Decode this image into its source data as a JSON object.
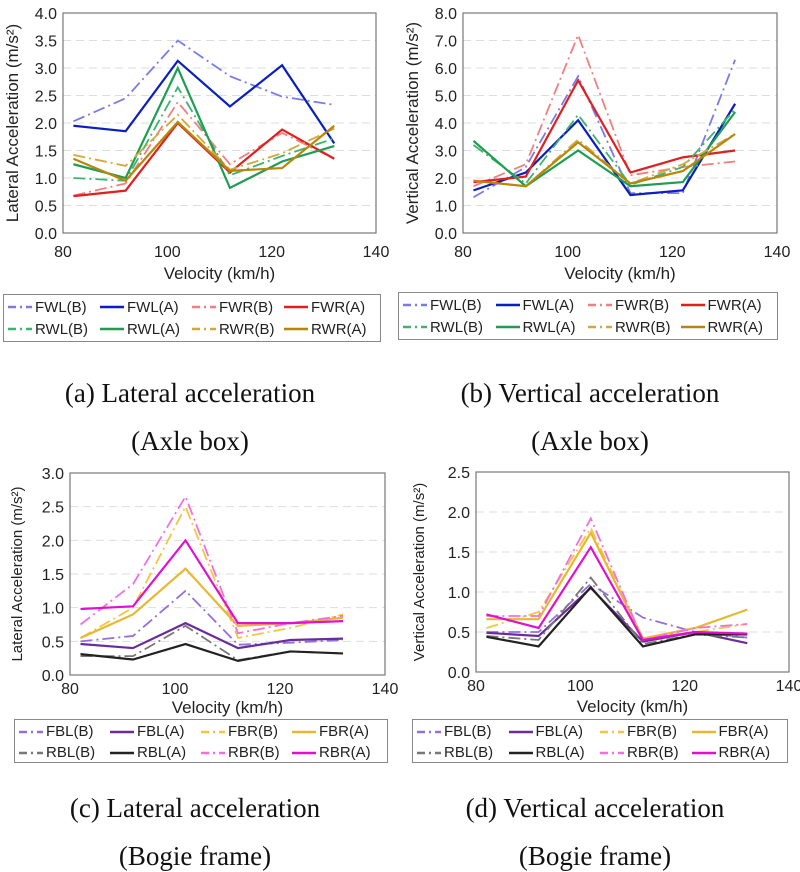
{
  "chart_data": [
    {
      "type": "line",
      "id": "a",
      "xlabel": "Velocity (km/h)",
      "ylabel": "Lateral Acceleration (m/s²)",
      "xlim": [
        80,
        140
      ],
      "ylim": [
        0,
        4
      ],
      "xticks": [
        "80",
        "100",
        "120",
        "140"
      ],
      "yticks": [
        "0.0",
        "0.5",
        "1.0",
        "1.5",
        "2.0",
        "2.5",
        "3.0",
        "3.5",
        "4.0"
      ],
      "grid": "horizontal dashed",
      "legend": "below",
      "caption_line1": "(a) Lateral acceleration",
      "caption_line2": "(Axle box)",
      "x": [
        82,
        92,
        102,
        112,
        122,
        132
      ],
      "series": [
        {
          "name": "FWL(B)",
          "color": "#7b7be6",
          "style": "dashdot",
          "values": [
            2.03,
            2.45,
            3.5,
            2.85,
            2.48,
            2.33
          ]
        },
        {
          "name": "FWL(A)",
          "color": "#0a1fbf",
          "style": "solid",
          "values": [
            1.95,
            1.85,
            3.13,
            2.3,
            3.05,
            1.63
          ]
        },
        {
          "name": "FWR(B)",
          "color": "#f08080",
          "style": "dashdot",
          "values": [
            0.68,
            0.9,
            2.38,
            1.25,
            1.82,
            1.35
          ]
        },
        {
          "name": "FWR(A)",
          "color": "#e01f1f",
          "style": "solid",
          "values": [
            0.67,
            0.77,
            2.0,
            1.1,
            1.88,
            1.35
          ]
        },
        {
          "name": "RWL(B)",
          "color": "#3cb371",
          "style": "dashdot",
          "values": [
            1.0,
            0.95,
            2.65,
            1.05,
            1.4,
            1.72
          ]
        },
        {
          "name": "RWL(A)",
          "color": "#1e9e50",
          "style": "solid",
          "values": [
            1.25,
            1.0,
            3.0,
            0.82,
            1.3,
            1.58
          ]
        },
        {
          "name": "RWR(B)",
          "color": "#d4a73a",
          "style": "dashdot",
          "values": [
            1.42,
            1.22,
            2.15,
            1.15,
            1.45,
            1.9
          ]
        },
        {
          "name": "RWR(A)",
          "color": "#b8860b",
          "style": "solid",
          "values": [
            1.35,
            0.95,
            2.02,
            1.13,
            1.18,
            1.95
          ]
        }
      ]
    },
    {
      "type": "line",
      "id": "b",
      "xlabel": "Velocity (km/h)",
      "ylabel": "Vertical Acceleration (m/s²)",
      "xlim": [
        80,
        140
      ],
      "ylim": [
        0,
        8
      ],
      "xticks": [
        "80",
        "100",
        "120",
        "140"
      ],
      "yticks": [
        "0.0",
        "1.0",
        "2.0",
        "3.0",
        "4.0",
        "5.0",
        "6.0",
        "7.0",
        "8.0"
      ],
      "grid": "horizontal dashed",
      "legend": "below",
      "caption_line1": "(b) Vertical acceleration",
      "caption_line2": "(Axle box)",
      "x": [
        82,
        92,
        102,
        112,
        122,
        132
      ],
      "series": [
        {
          "name": "FWL(B)",
          "color": "#7b7be6",
          "style": "dashdot",
          "values": [
            1.3,
            2.4,
            5.7,
            1.45,
            1.45,
            6.3
          ]
        },
        {
          "name": "FWL(A)",
          "color": "#0a1fbf",
          "style": "solid",
          "values": [
            1.55,
            2.2,
            4.1,
            1.38,
            1.55,
            4.7
          ]
        },
        {
          "name": "FWR(B)",
          "color": "#f08080",
          "style": "dashdot",
          "values": [
            1.7,
            2.5,
            7.2,
            2.1,
            2.4,
            2.6
          ]
        },
        {
          "name": "FWR(A)",
          "color": "#e01f1f",
          "style": "solid",
          "values": [
            1.85,
            2.05,
            5.55,
            2.2,
            2.75,
            3.0
          ]
        },
        {
          "name": "RWL(B)",
          "color": "#3cb371",
          "style": "dashdot",
          "values": [
            3.2,
            1.8,
            4.3,
            1.75,
            2.4,
            4.5
          ]
        },
        {
          "name": "RWL(A)",
          "color": "#1e9e50",
          "style": "solid",
          "values": [
            3.35,
            1.7,
            3.0,
            1.7,
            1.85,
            4.4
          ]
        },
        {
          "name": "RWR(B)",
          "color": "#d4a73a",
          "style": "dashdot",
          "values": [
            1.9,
            1.7,
            3.4,
            1.8,
            2.5,
            3.6
          ]
        },
        {
          "name": "RWR(A)",
          "color": "#b8860b",
          "style": "solid",
          "values": [
            1.9,
            1.7,
            3.3,
            1.8,
            2.25,
            3.6
          ]
        }
      ]
    },
    {
      "type": "line",
      "id": "c",
      "xlabel": "Velocity (km/h)",
      "ylabel": "Lateral Acceleration (m/s²)",
      "xlim": [
        80,
        140
      ],
      "ylim": [
        0,
        3
      ],
      "xticks": [
        "80",
        "100",
        "120",
        "140"
      ],
      "yticks": [
        "0.0",
        "0.5",
        "1.0",
        "1.5",
        "2.0",
        "2.5",
        "3.0"
      ],
      "grid": "horizontal dashed",
      "legend": "below",
      "caption_line1": "(c) Lateral acceleration",
      "caption_line2": "(Bogie frame)",
      "x": [
        82,
        92,
        102,
        112,
        122,
        132
      ],
      "series": [
        {
          "name": "FBL(B)",
          "color": "#9370db",
          "style": "dashdot",
          "values": [
            0.5,
            0.58,
            1.25,
            0.45,
            0.48,
            0.52
          ]
        },
        {
          "name": "FBL(A)",
          "color": "#6a2c9a",
          "style": "solid",
          "values": [
            0.46,
            0.4,
            0.77,
            0.4,
            0.52,
            0.54
          ]
        },
        {
          "name": "FBR(B)",
          "color": "#f5c542",
          "style": "dashdot",
          "values": [
            0.55,
            1.0,
            2.5,
            0.55,
            0.7,
            0.9
          ]
        },
        {
          "name": "FBR(A)",
          "color": "#e8b830",
          "style": "solid",
          "values": [
            0.55,
            0.9,
            1.58,
            0.73,
            0.77,
            0.85
          ]
        },
        {
          "name": "RBL(B)",
          "color": "#777777",
          "style": "dashdot",
          "values": [
            0.28,
            0.28,
            0.73,
            0.22,
            0.35,
            0.32
          ]
        },
        {
          "name": "RBL(A)",
          "color": "#222222",
          "style": "solid",
          "values": [
            0.31,
            0.23,
            0.46,
            0.21,
            0.35,
            0.32
          ]
        },
        {
          "name": "RBR(B)",
          "color": "#f070e0",
          "style": "dashdot",
          "values": [
            0.75,
            1.35,
            2.65,
            0.62,
            0.77,
            0.88
          ]
        },
        {
          "name": "RBR(A)",
          "color": "#e010d0",
          "style": "solid",
          "values": [
            0.98,
            1.02,
            2.0,
            0.77,
            0.77,
            0.8
          ]
        }
      ]
    },
    {
      "type": "line",
      "id": "d",
      "xlabel": "Velocity (km/h)",
      "ylabel": "Vertical Acceleration (m/s²)",
      "xlim": [
        80,
        140
      ],
      "ylim": [
        0,
        2.5
      ],
      "xticks": [
        "80",
        "100",
        "120",
        "140"
      ],
      "yticks": [
        "0.0",
        "0.5",
        "1.0",
        "1.5",
        "2.0",
        "2.5"
      ],
      "grid": "horizontal dashed",
      "legend": "below",
      "caption_line1": "(d) Vertical acceleration",
      "caption_line2": "(Bogie frame)",
      "x": [
        82,
        92,
        102,
        112,
        122,
        132
      ],
      "series": [
        {
          "name": "FBL(B)",
          "color": "#9370db",
          "style": "dashdot",
          "values": [
            0.5,
            0.5,
            1.1,
            0.68,
            0.5,
            0.43
          ]
        },
        {
          "name": "FBL(A)",
          "color": "#6a2c9a",
          "style": "solid",
          "values": [
            0.49,
            0.45,
            1.05,
            0.38,
            0.5,
            0.36
          ]
        },
        {
          "name": "FBR(B)",
          "color": "#f5c542",
          "style": "dashdot",
          "values": [
            0.55,
            0.75,
            1.8,
            0.42,
            0.5,
            0.6
          ]
        },
        {
          "name": "FBR(A)",
          "color": "#e8b830",
          "style": "solid",
          "values": [
            0.66,
            0.66,
            1.74,
            0.42,
            0.55,
            0.78
          ]
        },
        {
          "name": "RBL(B)",
          "color": "#777777",
          "style": "dashdot",
          "values": [
            0.45,
            0.4,
            1.18,
            0.35,
            0.47,
            0.43
          ]
        },
        {
          "name": "RBL(A)",
          "color": "#222222",
          "style": "solid",
          "values": [
            0.44,
            0.32,
            1.06,
            0.32,
            0.47,
            0.47
          ]
        },
        {
          "name": "RBR(B)",
          "color": "#f070e0",
          "style": "dashdot",
          "values": [
            0.7,
            0.7,
            1.92,
            0.4,
            0.55,
            0.6
          ]
        },
        {
          "name": "RBR(A)",
          "color": "#e010d0",
          "style": "solid",
          "values": [
            0.72,
            0.55,
            1.56,
            0.4,
            0.5,
            0.48
          ]
        }
      ]
    }
  ]
}
